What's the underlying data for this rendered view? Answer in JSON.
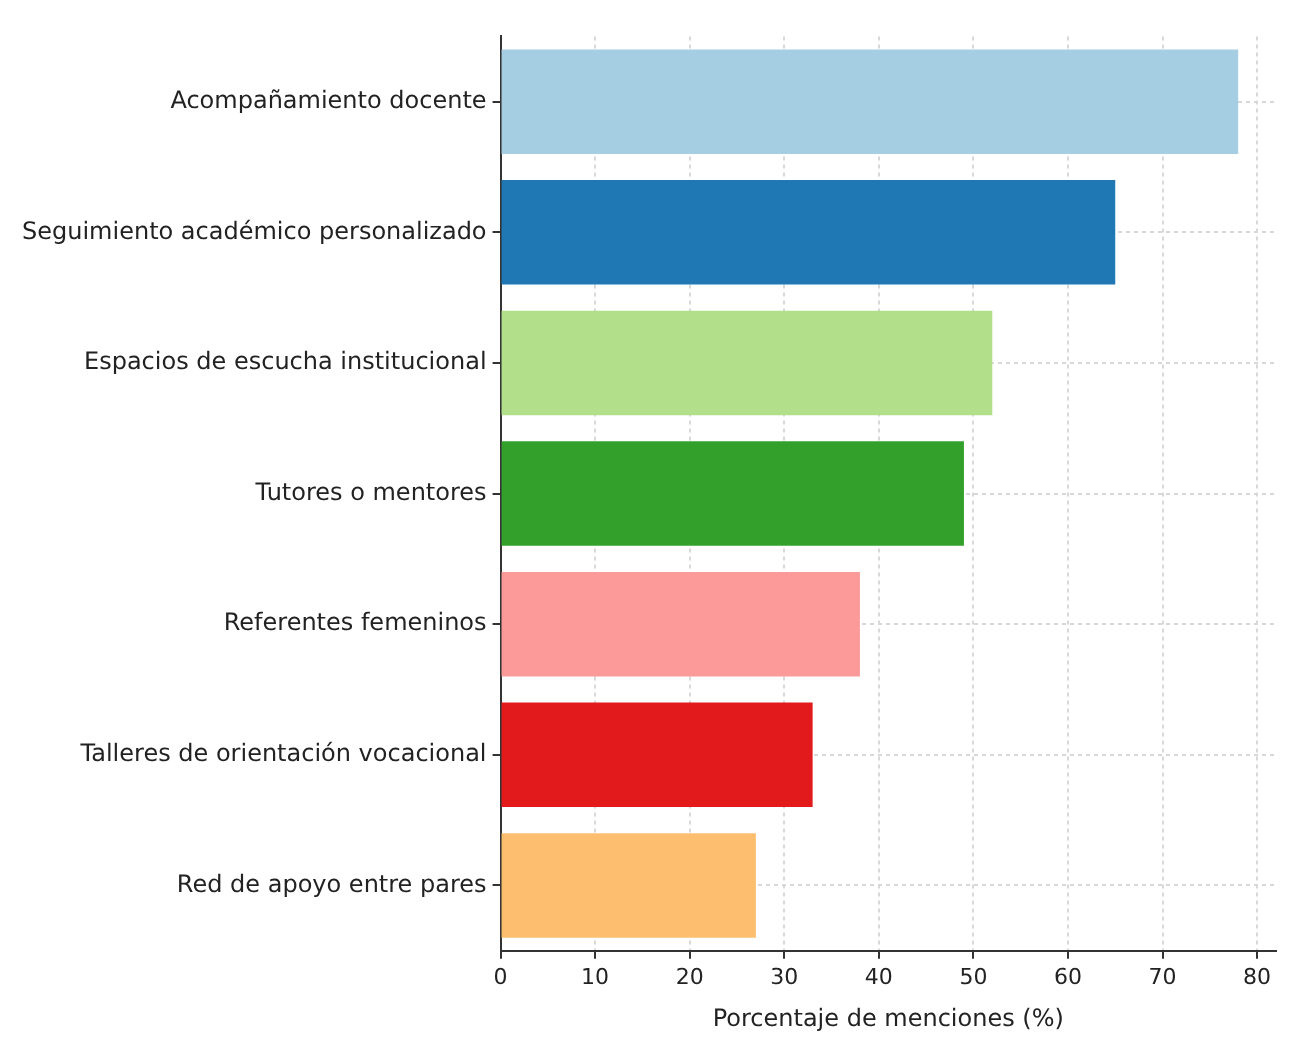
{
  "chart_data": {
    "type": "bar",
    "orientation": "horizontal",
    "xlabel": "Porcentaje de menciones (%)",
    "categories": [
      "Acompañamiento docente",
      "Seguimiento académico personalizado",
      "Espacios de escucha institucional",
      "Tutores o mentores",
      "Referentes femeninos",
      "Talleres de orientación vocacional",
      "Red de apoyo entre pares"
    ],
    "values": [
      78,
      65,
      52,
      49,
      38,
      33,
      27
    ],
    "colors": [
      "#a6cee3",
      "#1f78b4",
      "#b2df8a",
      "#33a02c",
      "#fb9a99",
      "#e31a1c",
      "#fdbf6f"
    ],
    "xlim": [
      0,
      82
    ],
    "xticks": [
      0,
      10,
      20,
      30,
      40,
      50,
      60,
      70,
      80
    ],
    "grid": true,
    "legend": false
  }
}
